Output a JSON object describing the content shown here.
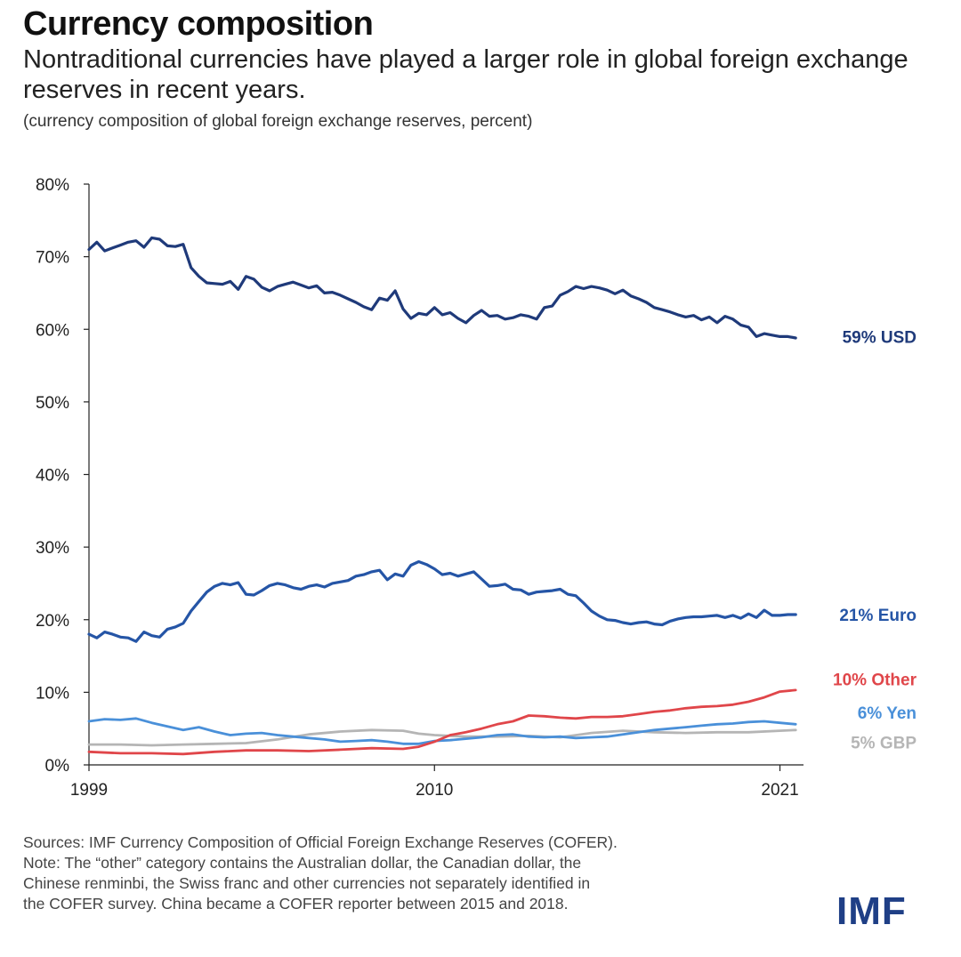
{
  "header": {
    "title": "Currency composition",
    "subtitle": "Nontraditional currencies have played a larger role in global foreign exchange reserves in recent years.",
    "note": "(currency composition of global foreign exchange reserves, percent)"
  },
  "footer": {
    "source_lines": [
      "Sources: IMF Currency Composition of Official Foreign Exchange Reserves (COFER).",
      "Note: The “other” category contains the Australian dollar, the Canadian dollar, the",
      "Chinese renminbi, the Swiss franc and other currencies not separately identified in",
      "the COFER survey. China became a COFER reporter between 2015 and 2018."
    ],
    "logo": "IMF"
  },
  "chart_data": {
    "type": "line",
    "ylim": [
      0,
      80
    ],
    "yticks": [
      "0%",
      "10%",
      "20%",
      "30%",
      "40%",
      "50%",
      "60%",
      "70%",
      "80%"
    ],
    "ytick_values": [
      0,
      10,
      20,
      30,
      40,
      50,
      60,
      70,
      80
    ],
    "xlim": [
      1999,
      2021.75
    ],
    "xticks": [
      "1999",
      "2010",
      "2021"
    ],
    "xtick_values": [
      1999,
      2010,
      2021
    ],
    "grid": false,
    "series": [
      {
        "name": "USD",
        "end_label": "59% USD",
        "color": "#1f3a7a",
        "x": [
          1999,
          1999.25,
          1999.5,
          1999.75,
          2000,
          2000.25,
          2000.5,
          2000.75,
          2001,
          2001.25,
          2001.5,
          2001.75,
          2002,
          2002.25,
          2002.5,
          2002.75,
          2003,
          2003.25,
          2003.5,
          2003.75,
          2004,
          2004.25,
          2004.5,
          2004.75,
          2005,
          2005.25,
          2005.5,
          2005.75,
          2006,
          2006.25,
          2006.5,
          2006.75,
          2007,
          2007.25,
          2007.5,
          2007.75,
          2008,
          2008.25,
          2008.5,
          2008.75,
          2009,
          2009.25,
          2009.5,
          2009.75,
          2010,
          2010.25,
          2010.5,
          2010.75,
          2011,
          2011.25,
          2011.5,
          2011.75,
          2012,
          2012.25,
          2012.5,
          2012.75,
          2013,
          2013.25,
          2013.5,
          2013.75,
          2014,
          2014.25,
          2014.5,
          2014.75,
          2015,
          2015.25,
          2015.5,
          2015.75,
          2016,
          2016.25,
          2016.5,
          2016.75,
          2017,
          2017.25,
          2017.5,
          2017.75,
          2018,
          2018.25,
          2018.5,
          2018.75,
          2019,
          2019.25,
          2019.5,
          2019.75,
          2020,
          2020.25,
          2020.5,
          2020.75,
          2021,
          2021.25,
          2021.5
        ],
        "y": [
          71.0,
          72.0,
          70.8,
          71.2,
          71.6,
          72.0,
          72.2,
          71.3,
          72.6,
          72.4,
          71.5,
          71.4,
          71.7,
          68.5,
          67.3,
          66.4,
          66.3,
          66.2,
          66.6,
          65.5,
          67.3,
          66.9,
          65.8,
          65.3,
          65.9,
          66.2,
          66.5,
          66.1,
          65.7,
          66.0,
          65.0,
          65.1,
          64.7,
          64.2,
          63.7,
          63.1,
          62.7,
          64.3,
          64.0,
          65.3,
          62.8,
          61.5,
          62.2,
          62.0,
          63.0,
          62.0,
          62.3,
          61.5,
          60.9,
          61.9,
          62.6,
          61.8,
          61.9,
          61.4,
          61.6,
          62.0,
          61.8,
          61.4,
          63.0,
          63.2,
          64.7,
          65.2,
          65.9,
          65.6,
          65.9,
          65.7,
          65.4,
          64.9,
          65.4,
          64.6,
          64.2,
          63.7,
          63.0,
          62.7,
          62.4,
          62.0,
          61.7,
          61.9,
          61.3,
          61.7,
          60.9,
          61.8,
          61.4,
          60.6,
          60.3,
          59.0,
          59.4,
          59.2,
          59.0,
          59.0,
          58.8
        ]
      },
      {
        "name": "Euro",
        "end_label": "21% Euro",
        "color": "#2555a6",
        "x": [
          1999,
          1999.25,
          1999.5,
          1999.75,
          2000,
          2000.25,
          2000.5,
          2000.75,
          2001,
          2001.25,
          2001.5,
          2001.75,
          2002,
          2002.25,
          2002.5,
          2002.75,
          2003,
          2003.25,
          2003.5,
          2003.75,
          2004,
          2004.25,
          2004.5,
          2004.75,
          2005,
          2005.25,
          2005.5,
          2005.75,
          2006,
          2006.25,
          2006.5,
          2006.75,
          2007,
          2007.25,
          2007.5,
          2007.75,
          2008,
          2008.25,
          2008.5,
          2008.75,
          2009,
          2009.25,
          2009.5,
          2009.75,
          2010,
          2010.25,
          2010.5,
          2010.75,
          2011,
          2011.25,
          2011.5,
          2011.75,
          2012,
          2012.25,
          2012.5,
          2012.75,
          2013,
          2013.25,
          2013.5,
          2013.75,
          2014,
          2014.25,
          2014.5,
          2014.75,
          2015,
          2015.25,
          2015.5,
          2015.75,
          2016,
          2016.25,
          2016.5,
          2016.75,
          2017,
          2017.25,
          2017.5,
          2017.75,
          2018,
          2018.25,
          2018.5,
          2018.75,
          2019,
          2019.25,
          2019.5,
          2019.75,
          2020,
          2020.25,
          2020.5,
          2020.75,
          2021,
          2021.25,
          2021.5
        ],
        "y": [
          18.0,
          17.5,
          18.3,
          18.0,
          17.6,
          17.5,
          17.0,
          18.3,
          17.8,
          17.6,
          18.7,
          19.0,
          19.5,
          21.2,
          22.5,
          23.8,
          24.6,
          25.0,
          24.8,
          25.1,
          23.5,
          23.4,
          24.0,
          24.7,
          25.0,
          24.8,
          24.4,
          24.2,
          24.6,
          24.8,
          24.5,
          25.0,
          25.2,
          25.4,
          26.0,
          26.2,
          26.6,
          26.8,
          25.5,
          26.3,
          26.0,
          27.5,
          28.0,
          27.6,
          27.0,
          26.2,
          26.4,
          26.0,
          26.3,
          26.6,
          25.6,
          24.6,
          24.7,
          24.9,
          24.2,
          24.1,
          23.5,
          23.8,
          23.9,
          24.0,
          24.2,
          23.5,
          23.3,
          22.3,
          21.2,
          20.5,
          20.0,
          19.9,
          19.6,
          19.4,
          19.6,
          19.7,
          19.4,
          19.3,
          19.8,
          20.1,
          20.3,
          20.4,
          20.4,
          20.5,
          20.6,
          20.3,
          20.6,
          20.2,
          20.8,
          20.3,
          21.3,
          20.6,
          20.6,
          20.7,
          20.7
        ]
      },
      {
        "name": "Other",
        "end_label": "10% Other",
        "color": "#e0464a",
        "x": [
          1999,
          2000,
          2001,
          2002,
          2003,
          2004,
          2005,
          2006,
          2007,
          2008,
          2009,
          2009.5,
          2010,
          2010.5,
          2011,
          2011.5,
          2012,
          2012.5,
          2013,
          2013.5,
          2014,
          2014.5,
          2015,
          2015.5,
          2016,
          2016.5,
          2017,
          2017.5,
          2018,
          2018.5,
          2019,
          2019.5,
          2020,
          2020.5,
          2021,
          2021.5
        ],
        "y": [
          1.8,
          1.6,
          1.6,
          1.5,
          1.8,
          2.0,
          2.0,
          1.9,
          2.1,
          2.3,
          2.2,
          2.5,
          3.2,
          4.1,
          4.5,
          5.0,
          5.6,
          6.0,
          6.8,
          6.7,
          6.5,
          6.4,
          6.6,
          6.6,
          6.7,
          7.0,
          7.3,
          7.5,
          7.8,
          8.0,
          8.1,
          8.3,
          8.7,
          9.3,
          10.1,
          10.3
        ]
      },
      {
        "name": "Yen",
        "end_label": "6% Yen",
        "color": "#4a90d9",
        "x": [
          1999,
          1999.5,
          2000,
          2000.5,
          2001,
          2001.5,
          2002,
          2002.5,
          2003,
          2003.5,
          2004,
          2004.5,
          2005,
          2005.5,
          2006,
          2006.5,
          2007,
          2007.5,
          2008,
          2008.5,
          2009,
          2009.5,
          2010,
          2010.5,
          2011,
          2011.5,
          2012,
          2012.5,
          2013,
          2013.5,
          2014,
          2014.5,
          2015,
          2015.5,
          2016,
          2016.5,
          2017,
          2017.5,
          2018,
          2018.5,
          2019,
          2019.5,
          2020,
          2020.5,
          2021,
          2021.5
        ],
        "y": [
          6.0,
          6.3,
          6.2,
          6.4,
          5.8,
          5.3,
          4.8,
          5.2,
          4.6,
          4.1,
          4.3,
          4.4,
          4.1,
          3.9,
          3.7,
          3.5,
          3.2,
          3.3,
          3.4,
          3.2,
          2.9,
          2.9,
          3.3,
          3.4,
          3.6,
          3.8,
          4.1,
          4.2,
          3.9,
          3.8,
          3.9,
          3.7,
          3.8,
          3.9,
          4.2,
          4.5,
          4.8,
          5.0,
          5.2,
          5.4,
          5.6,
          5.7,
          5.9,
          6.0,
          5.8,
          5.6
        ]
      },
      {
        "name": "GBP",
        "end_label": "5% GBP",
        "color": "#b5b5b5",
        "x": [
          1999,
          2000,
          2001,
          2002,
          2003,
          2004,
          2005,
          2006,
          2007,
          2008,
          2009,
          2009.5,
          2010,
          2011,
          2012,
          2013,
          2014,
          2015,
          2016,
          2017,
          2018,
          2019,
          2020,
          2021,
          2021.5
        ],
        "y": [
          2.8,
          2.8,
          2.7,
          2.8,
          2.9,
          3.0,
          3.5,
          4.2,
          4.6,
          4.8,
          4.7,
          4.3,
          4.1,
          3.9,
          3.9,
          4.0,
          3.8,
          4.4,
          4.7,
          4.5,
          4.4,
          4.5,
          4.5,
          4.7,
          4.8
        ]
      }
    ]
  }
}
